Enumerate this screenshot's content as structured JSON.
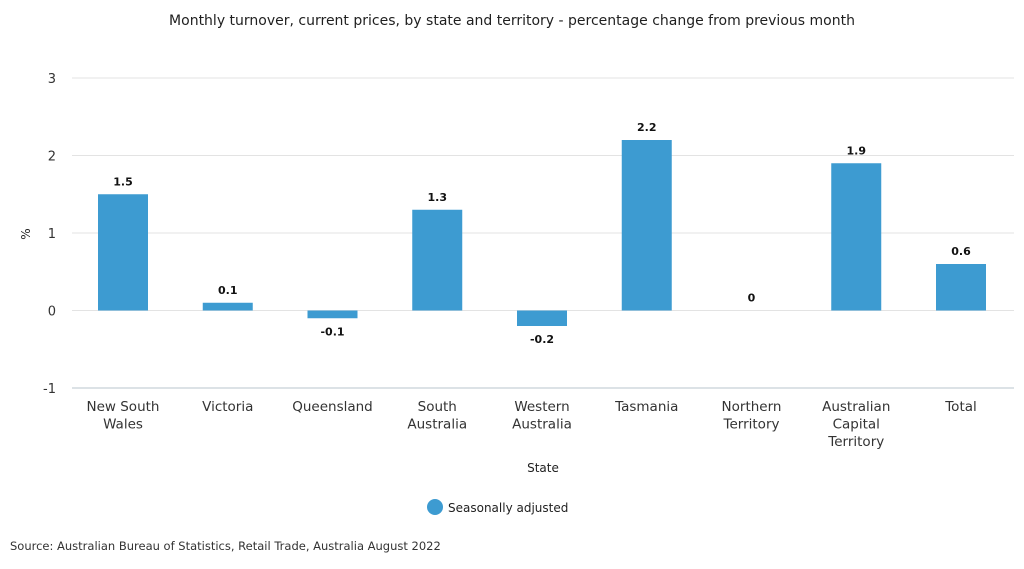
{
  "chart_data": {
    "type": "bar",
    "title": "Monthly turnover, current prices, by state and territory - percentage change from previous month",
    "xlabel": "State",
    "ylabel": "%",
    "ylim": [
      -1,
      3
    ],
    "yticks": [
      3,
      2,
      1,
      0,
      -1
    ],
    "grid": true,
    "legend_position": "bottom",
    "categories": [
      [
        "New South",
        "Wales"
      ],
      [
        "Victoria"
      ],
      [
        "Queensland"
      ],
      [
        "South",
        "Australia"
      ],
      [
        "Western",
        "Australia"
      ],
      [
        "Tasmania"
      ],
      [
        "Northern",
        "Territory"
      ],
      [
        "Australian",
        "Capital",
        "Territory"
      ],
      [
        "Total"
      ]
    ],
    "series": [
      {
        "name": "Seasonally adjusted",
        "values": [
          1.5,
          0.1,
          -0.1,
          1.3,
          -0.2,
          2.2,
          0,
          1.9,
          0.6
        ],
        "color": "#3d9bd1"
      }
    ]
  },
  "source": "Source: Australian Bureau of Statistics, Retail Trade, Australia August 2022"
}
